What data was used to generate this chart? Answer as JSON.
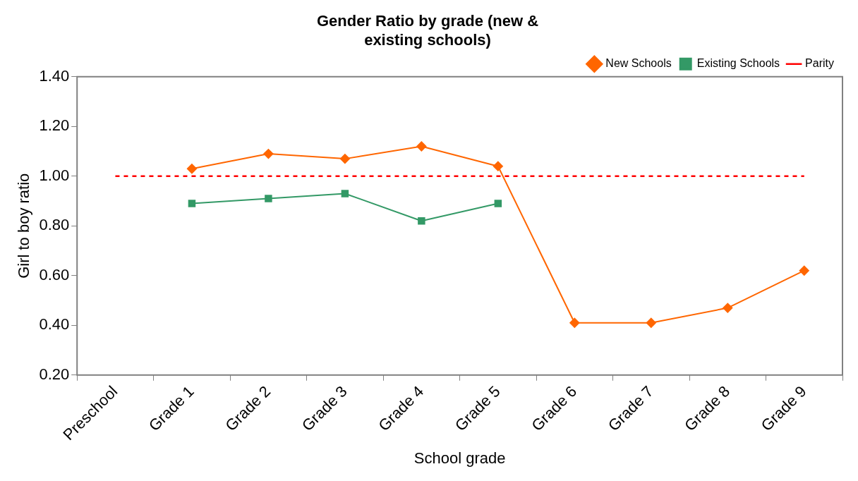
{
  "chart_data": {
    "type": "line",
    "title": "Gender Ratio by grade (new & existing schools)",
    "xlabel": "School grade",
    "ylabel": "Girl to boy ratio",
    "categories": [
      "Preschool",
      "Grade 1",
      "Grade 2",
      "Grade 3",
      "Grade 4",
      "Grade 5",
      "Grade 6",
      "Grade 7",
      "Grade 8",
      "Grade 9"
    ],
    "series": [
      {
        "name": "New Schools",
        "color": "#ff6600",
        "marker": "diamond",
        "line_style": "solid",
        "values": [
          null,
          1.03,
          1.09,
          1.07,
          1.12,
          1.04,
          0.41,
          0.41,
          0.47,
          0.62
        ]
      },
      {
        "name": "Existing Schools",
        "color": "#339966",
        "marker": "square",
        "line_style": "solid",
        "values": [
          null,
          0.89,
          0.91,
          0.93,
          0.82,
          0.89,
          null,
          null,
          null,
          null
        ]
      },
      {
        "name": "Parity",
        "color": "#ff0000",
        "marker": "none",
        "line_style": "dashed",
        "values": [
          1,
          1,
          1,
          1,
          1,
          1,
          1,
          1,
          1,
          1
        ]
      }
    ],
    "ylim": [
      0.2,
      1.4
    ],
    "yticks": [
      {
        "value": 0.2,
        "label": "0.20"
      },
      {
        "value": 0.4,
        "label": "0.40"
      },
      {
        "value": 0.6,
        "label": "0.60"
      },
      {
        "value": 0.8,
        "label": "0.80"
      },
      {
        "value": 1.0,
        "label": "1.00"
      },
      {
        "value": 1.2,
        "label": "1.20"
      },
      {
        "value": 1.4,
        "label": "1.40"
      }
    ],
    "grid": false,
    "legend": "top right"
  }
}
